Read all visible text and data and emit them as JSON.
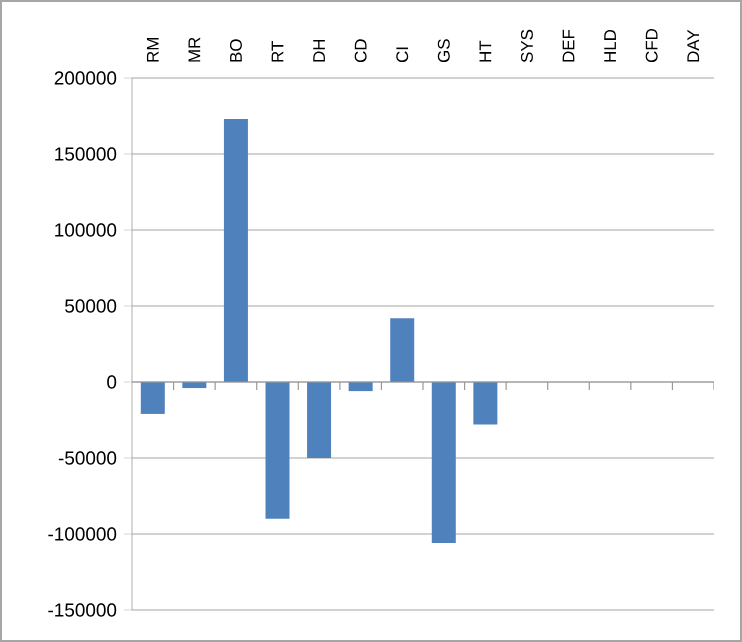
{
  "chart_data": {
    "type": "bar",
    "categories": [
      "RM",
      "MR",
      "BO",
      "RT",
      "DH",
      "CD",
      "CI",
      "GS",
      "HT",
      "SYS",
      "DEF",
      "HLD",
      "CFD",
      "DAY"
    ],
    "values": [
      -21000,
      -4000,
      173000,
      -90000,
      -50000,
      -6000,
      42000,
      -106000,
      -28000,
      0,
      0,
      0,
      0,
      0
    ],
    "color": "#4f81bd",
    "ylim": [
      -150000,
      200000
    ],
    "yticks": [
      -150000,
      -100000,
      -50000,
      0,
      50000,
      100000,
      150000,
      200000
    ],
    "grid": "y"
  }
}
